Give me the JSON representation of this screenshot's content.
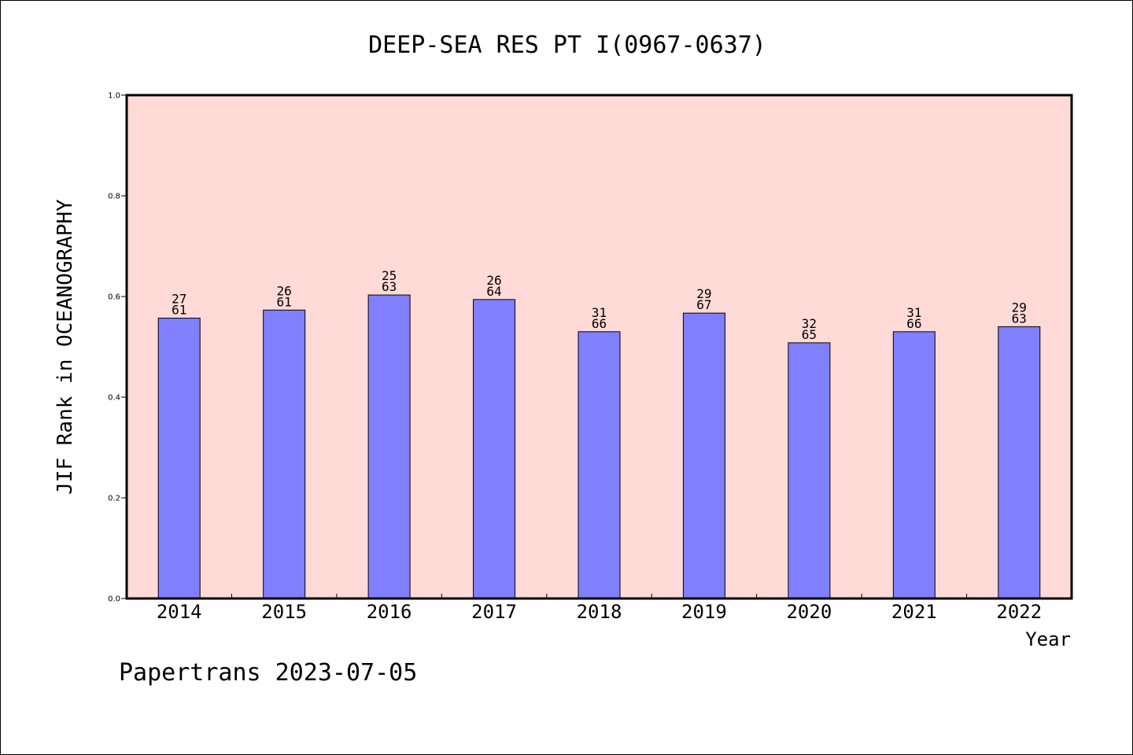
{
  "chart_data": {
    "type": "bar",
    "title": "DEEP-SEA RES PT I(0967-0637)",
    "xlabel": "Year",
    "ylabel": "JIF Rank in OCEANOGRAPHY",
    "ylim": [
      0,
      1.0
    ],
    "yticks": [
      "0.0",
      "0.2",
      "0.4",
      "0.6",
      "0.8",
      "1.0"
    ],
    "categories": [
      "2014",
      "2015",
      "2016",
      "2017",
      "2018",
      "2019",
      "2020",
      "2021",
      "2022"
    ],
    "values": [
      0.557,
      0.573,
      0.603,
      0.594,
      0.53,
      0.567,
      0.508,
      0.53,
      0.54
    ],
    "rank_labels": [
      [
        "27",
        "61"
      ],
      [
        "26",
        "61"
      ],
      [
        "25",
        "63"
      ],
      [
        "26",
        "64"
      ],
      [
        "31",
        "66"
      ],
      [
        "29",
        "67"
      ],
      [
        "32",
        "65"
      ],
      [
        "31",
        "66"
      ],
      [
        "29",
        "63"
      ]
    ],
    "grid": false,
    "legend": "none",
    "colors": {
      "plot_background": "#FFDAD7",
      "bar_fill": "#8080FF",
      "bar_stroke": "#000000"
    }
  },
  "footer": "Papertrans 2023-07-05"
}
